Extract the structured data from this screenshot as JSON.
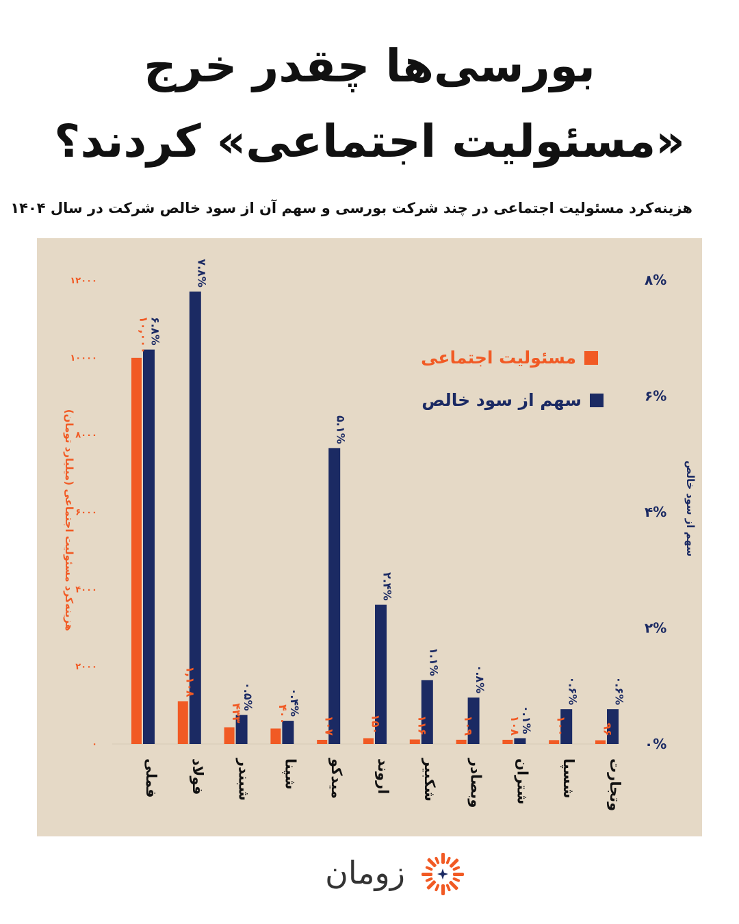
{
  "title_line1": "بورسی‌ها چقدر خرج",
  "title_line2": "«مسئولیت اجتماعی» کردند؟",
  "subtitle": "هزینه‌کرد مسئولیت اجتماعی در چند شرکت بورسی و سهم آن از سود خالص شرکت در سال ۱۴۰۴",
  "legend": {
    "series1": "مسئولیت اجتماعی",
    "series2": "سهم از سود خالص"
  },
  "brand": "زومان",
  "colors": {
    "orange": "#f15a24",
    "navy": "#1b2a63",
    "panel": "#e5d9c6"
  },
  "chart_data": {
    "type": "bar",
    "categories": [
      "فملی",
      "فولاد",
      "شبندر",
      "شپنا",
      "میدکو",
      "اروند",
      "شکبیر",
      "وبصادر",
      "شتران",
      "شسپا",
      "وتجارت"
    ],
    "series": [
      {
        "name": "مسئولیت اجتماعی",
        "axis": "left",
        "values": [
          10000,
          1108,
          433,
          400,
          107,
          150,
          116,
          109,
          108,
          100,
          96
        ],
        "labels": [
          "۱۰,۰۰۰",
          "۱,۱۰۸",
          "۴۳۳",
          "۴۰۰",
          "۱۰۷",
          "۱۵۰",
          "۱۱۶",
          "۱۰۹",
          "۱۰۸",
          "۱۰۰",
          "۹۶"
        ]
      },
      {
        "name": "سهم از سود خالص",
        "axis": "right",
        "values": [
          6.8,
          7.8,
          0.5,
          0.4,
          5.1,
          2.4,
          1.1,
          0.8,
          0.1,
          0.6,
          0.6
        ],
        "labels": [
          "۶.۸%",
          "۷.۸%",
          "۰.۵%",
          "۰.۴%",
          "۵.۱%",
          "۲.۴%",
          "۱.۱%",
          "۰.۸%",
          "۰.۱%",
          "۰.۶%",
          "۰.۶%"
        ]
      }
    ],
    "yleft": {
      "label": "هزینه‌کرد مسئولیت اجتماعی (میلیارد تومان)",
      "ylim": [
        0,
        12000
      ],
      "ticks": [
        0,
        2000,
        4000,
        6000,
        8000,
        10000,
        12000
      ],
      "tick_labels": [
        "۰",
        "۲۰۰۰",
        "۴۰۰۰",
        "۶۰۰۰",
        "۸۰۰۰",
        "۱۰۰۰۰",
        "۱۲۰۰۰"
      ]
    },
    "yright": {
      "label": "سهم از سود خالص",
      "ylim": [
        0,
        8
      ],
      "ticks": [
        0,
        2,
        4,
        6,
        8
      ],
      "tick_labels": [
        "۰%",
        "۲%",
        "۴%",
        "۶%",
        "۸%"
      ]
    },
    "grid": false,
    "legend_position": "top-right"
  }
}
